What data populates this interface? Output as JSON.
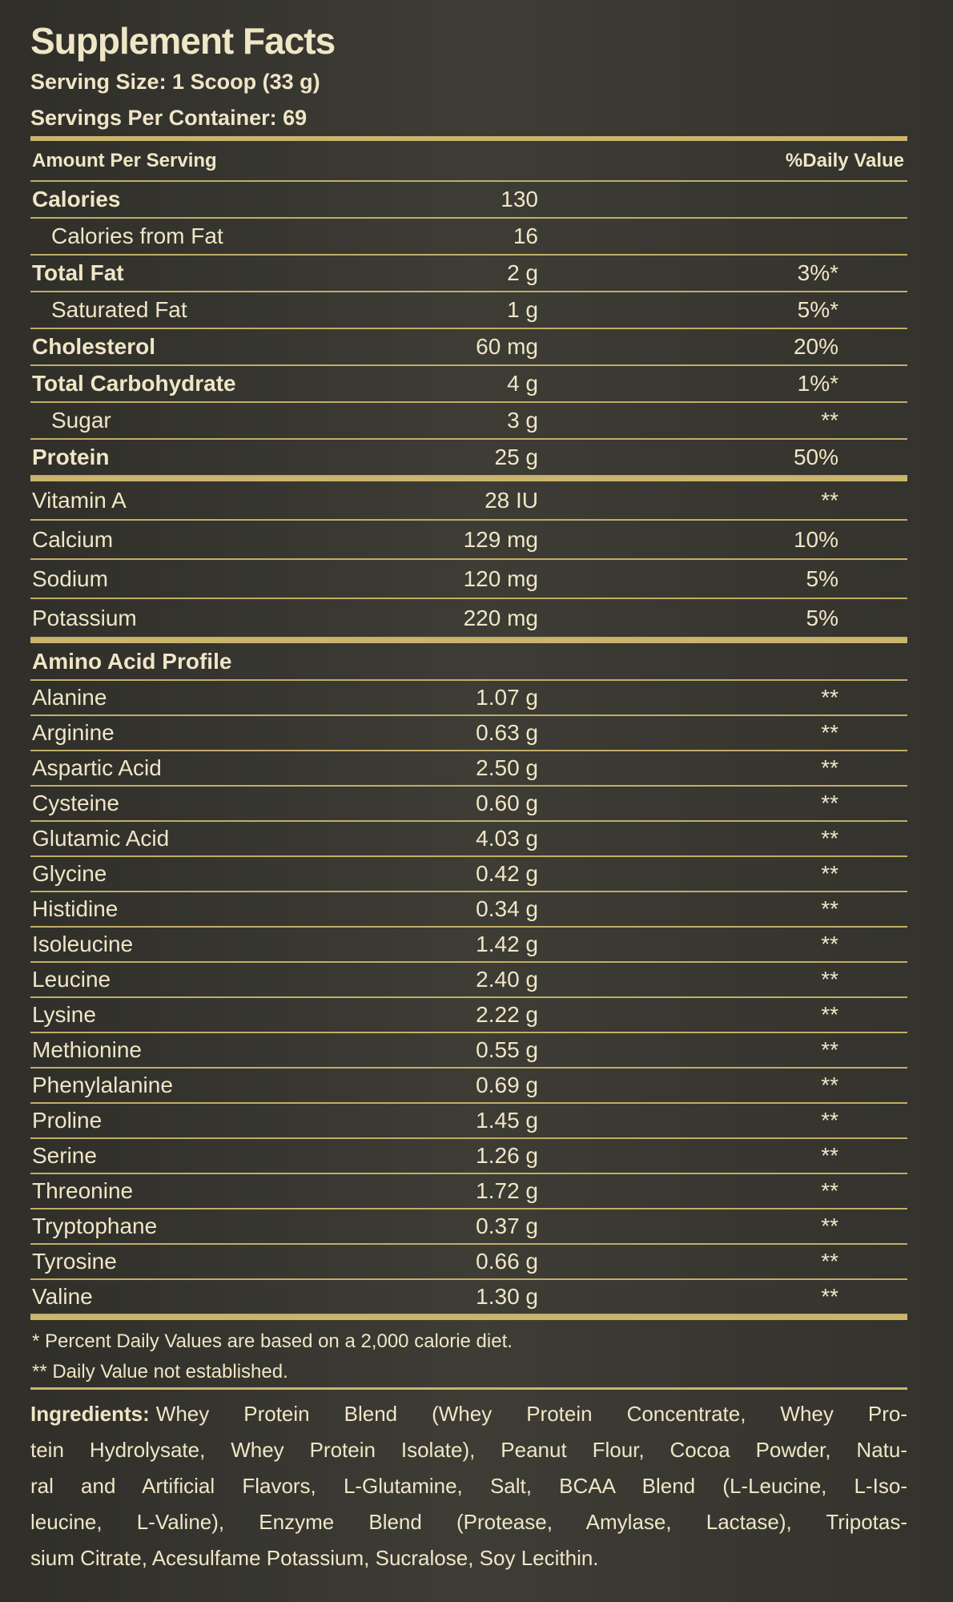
{
  "label": {
    "title": "Supplement Facts",
    "serving_size": "Serving Size: 1 Scoop (33 g)",
    "servings_per_container": "Servings Per Container: 69",
    "header": {
      "amount": "Amount Per Serving",
      "daily_value": "%Daily Value"
    },
    "nutrients": [
      {
        "name": "Calories",
        "amount": "130"
      },
      {
        "name": "Calories from Fat",
        "amount": "16"
      },
      {
        "name": "Total Fat",
        "amount": "2 g",
        "dv": "3%*"
      },
      {
        "name": "Saturated Fat",
        "amount": "1 g",
        "dv": "5%*"
      },
      {
        "name": "Cholesterol",
        "amount": "60 mg",
        "dv": "20%"
      },
      {
        "name": "Total Carbohydrate",
        "amount": "4 g",
        "dv": "1%*"
      },
      {
        "name": "Sugar",
        "amount": "3 g",
        "dv": "**"
      },
      {
        "name": "Protein",
        "amount": "25 g",
        "dv": "50%"
      }
    ],
    "vitamins_minerals": [
      {
        "name": "Vitamin A",
        "amount": "28 IU",
        "dv": "**"
      },
      {
        "name": "Calcium",
        "amount": "129 mg",
        "dv": "10%"
      },
      {
        "name": "Sodium",
        "amount": "120 mg",
        "dv": "5%"
      },
      {
        "name": "Potassium",
        "amount": "220 mg",
        "dv": "5%"
      }
    ],
    "amino_acids": {
      "title": "Amino Acid Profile",
      "rows": [
        {
          "name": "Alanine",
          "amount": "1.07 g",
          "dv": "**"
        },
        {
          "name": "Arginine",
          "amount": "0.63 g",
          "dv": "**"
        },
        {
          "name": "Aspartic Acid",
          "amount": "2.50 g",
          "dv": "**"
        },
        {
          "name": "Cysteine",
          "amount": "0.60 g",
          "dv": "**"
        },
        {
          "name": "Glutamic Acid",
          "amount": "4.03 g",
          "dv": "**"
        },
        {
          "name": "Glycine",
          "amount": "0.42 g",
          "dv": "**"
        },
        {
          "name": "Histidine",
          "amount": "0.34 g",
          "dv": "**"
        },
        {
          "name": "Isoleucine",
          "amount": "1.42 g",
          "dv": "**"
        },
        {
          "name": "Leucine",
          "amount": "2.40 g",
          "dv": "**"
        },
        {
          "name": "Lysine",
          "amount": "2.22 g",
          "dv": "**"
        },
        {
          "name": "Methionine",
          "amount": "0.55 g",
          "dv": "**"
        },
        {
          "name": "Phenylalanine",
          "amount": "0.69 g",
          "dv": "**"
        },
        {
          "name": "Proline",
          "amount": "1.45 g",
          "dv": "**"
        },
        {
          "name": "Serine",
          "amount": "1.26 g",
          "dv": "**"
        },
        {
          "name": "Threonine",
          "amount": "1.72 g",
          "dv": "**"
        },
        {
          "name": "Tryptophane",
          "amount": "0.37 g",
          "dv": "**"
        },
        {
          "name": "Tyrosine",
          "amount": "0.66 g",
          "dv": "**"
        },
        {
          "name": "Valine",
          "amount": "1.30 g",
          "dv": "**"
        }
      ]
    },
    "footnotes": [
      "* Percent Daily Values are based on a 2,000 calorie diet.",
      "** Daily Value not established."
    ],
    "ingredients": {
      "label": "Ingredients:",
      "lines": [
        "Whey Protein Blend (Whey Protein Concentrate, Whey Pro-",
        "tein Hydrolysate, Whey Protein Isolate), Peanut Flour, Cocoa Powder, Natu-",
        "ral and Artificial Flavors, L-Glutamine, Salt, BCAA Blend (L-Leucine, L-Iso-",
        "leucine, L-Valine), Enzyme Blend (Protease, Amylase, Lactase), Tripotas-",
        "sium Citrate, Acesulfame Potassium, Sucralose, Soy Lecithin."
      ]
    }
  }
}
